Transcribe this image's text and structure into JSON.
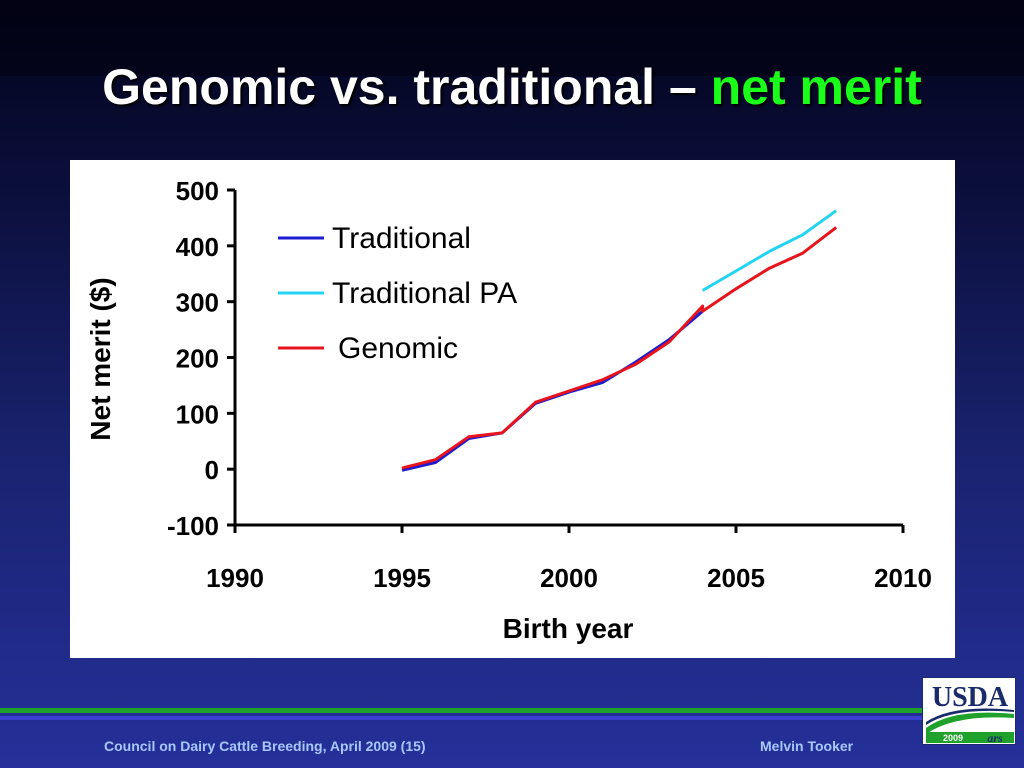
{
  "slide": {
    "title_main": "Genomic vs. traditional – ",
    "title_highlight": "net merit",
    "footer_left": "Council on Dairy Cattle Breeding, April 2009 (15)",
    "footer_right": "Melvin Tooker",
    "logo": {
      "text": "USDA",
      "year": "2009",
      "icon": "usda-ars-logo"
    }
  },
  "colors": {
    "title_highlight": "#19ff19",
    "traditional": "#1c1cd0",
    "traditional_pa": "#22d4f2",
    "genomic": "#e8141c",
    "footer_text": "#a8c8ff"
  },
  "chart_data": {
    "type": "line",
    "xlabel": "Birth year",
    "ylabel": "Net merit ($)",
    "xlim": [
      1990,
      2010
    ],
    "ylim": [
      -100,
      500
    ],
    "x_ticks": [
      1990,
      1995,
      2000,
      2005,
      2010
    ],
    "y_ticks": [
      500,
      400,
      300,
      200,
      100,
      0,
      -100
    ],
    "grid": false,
    "legend_position": "top-left",
    "series": [
      {
        "name": "Traditional",
        "color": "#1c1cd0",
        "x": [
          1995,
          1996,
          1997,
          1998,
          1999,
          2000,
          2001,
          2002,
          2003,
          2004
        ],
        "y": [
          -2,
          12,
          55,
          65,
          118,
          138,
          155,
          192,
          232,
          283
        ]
      },
      {
        "name": "Traditional PA",
        "color": "#22d4f2",
        "x": [
          2004,
          2005,
          2006,
          2007,
          2008
        ],
        "y": [
          320,
          355,
          390,
          420,
          463
        ]
      },
      {
        "name": "Genomic",
        "color": "#e8141c",
        "x": [
          1995,
          1996,
          1997,
          1998,
          1999,
          2000,
          2001,
          2002,
          2003,
          2004,
          2004,
          2005,
          2006,
          2007,
          2008
        ],
        "y": [
          2,
          17,
          58,
          65,
          120,
          140,
          160,
          188,
          228,
          292,
          283,
          323,
          360,
          387,
          433
        ]
      }
    ]
  }
}
